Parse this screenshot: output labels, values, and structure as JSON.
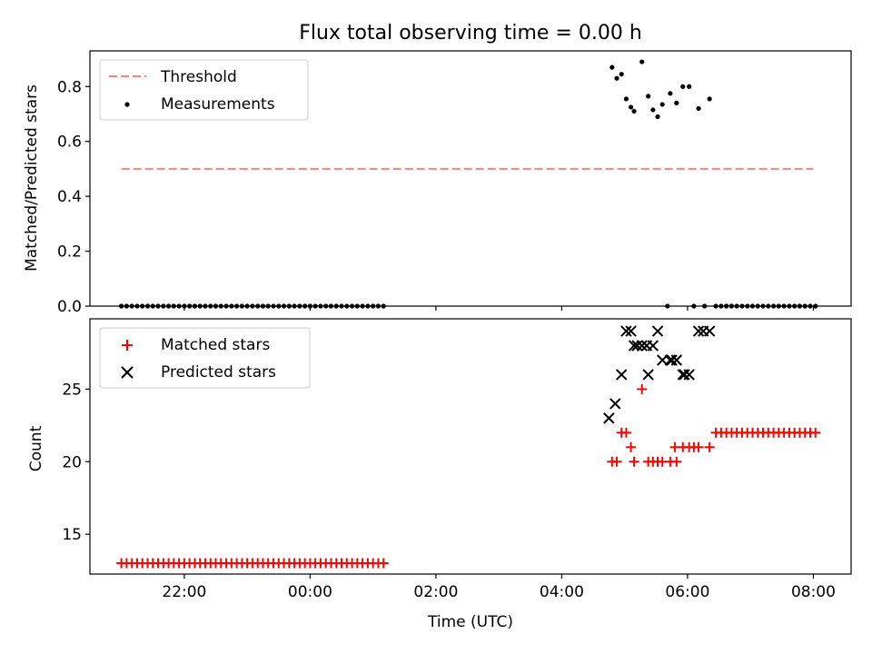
{
  "figure": {
    "title": "Flux total observing time = 0.00 h"
  },
  "colors": {
    "threshold": "#ff8080",
    "measurement": "#000000",
    "matched": "#ff0000",
    "predicted": "#000000",
    "axes": "#000000"
  },
  "chart_data": [
    {
      "type": "scatter",
      "panel": "top",
      "xlabel": "",
      "ylabel": "Matched/Predicted stars",
      "xlim": [
        20.5,
        32.6
      ],
      "ylim": [
        0.0,
        0.93
      ],
      "yticks": [
        0.0,
        0.2,
        0.4,
        0.6,
        0.8
      ],
      "ytick_labels": [
        "0.0",
        "0.2",
        "0.4",
        "0.6",
        "0.8"
      ],
      "xticks": [
        22,
        24,
        26,
        28,
        30,
        32
      ],
      "legend": {
        "placement": "top-left",
        "entries": [
          "Threshold",
          "Measurements"
        ]
      },
      "threshold": {
        "name": "Threshold",
        "x_range": [
          21.0,
          32.0
        ],
        "y": 0.5,
        "style": "dashed"
      },
      "series": [
        {
          "name": "Measurements",
          "marker": "dot",
          "x": [
            21.0,
            21.083,
            21.167,
            21.25,
            21.333,
            21.417,
            21.5,
            21.583,
            21.667,
            21.75,
            21.833,
            21.917,
            22.0,
            22.083,
            22.167,
            22.25,
            22.333,
            22.417,
            22.5,
            22.583,
            22.667,
            22.75,
            22.833,
            22.917,
            23.0,
            23.083,
            23.167,
            23.25,
            23.333,
            23.417,
            23.5,
            23.583,
            23.667,
            23.75,
            23.833,
            23.917,
            24.0,
            24.083,
            24.167,
            24.25,
            24.333,
            24.417,
            24.5,
            24.583,
            24.667,
            24.75,
            24.833,
            24.917,
            25.0,
            25.083,
            25.167,
            28.8,
            28.875,
            28.95,
            29.025,
            29.1,
            29.15,
            29.275,
            29.375,
            29.45,
            29.525,
            29.6,
            29.725,
            29.825,
            29.925,
            30.025,
            30.175,
            30.35,
            29.68,
            30.1,
            30.27,
            30.45,
            30.533,
            30.617,
            30.7,
            30.783,
            30.867,
            30.95,
            31.033,
            31.117,
            31.2,
            31.283,
            31.367,
            31.45,
            31.533,
            31.617,
            31.7,
            31.783,
            31.867,
            31.95,
            32.033
          ],
          "y": [
            0,
            0,
            0,
            0,
            0,
            0,
            0,
            0,
            0,
            0,
            0,
            0,
            0,
            0,
            0,
            0,
            0,
            0,
            0,
            0,
            0,
            0,
            0,
            0,
            0,
            0,
            0,
            0,
            0,
            0,
            0,
            0,
            0,
            0,
            0,
            0,
            0,
            0,
            0,
            0,
            0,
            0,
            0,
            0,
            0,
            0,
            0,
            0,
            0,
            0,
            0,
            0.87,
            0.83,
            0.845,
            0.755,
            0.725,
            0.71,
            0.89,
            0.765,
            0.715,
            0.69,
            0.735,
            0.775,
            0.74,
            0.8,
            0.8,
            0.72,
            0.755,
            0,
            0,
            0,
            0,
            0,
            0,
            0,
            0,
            0,
            0,
            0,
            0,
            0,
            0,
            0,
            0,
            0,
            0,
            0,
            0,
            0,
            0,
            0
          ]
        }
      ]
    },
    {
      "type": "scatter",
      "panel": "bottom",
      "xlabel": "Time (UTC)",
      "ylabel": "Count",
      "xlim": [
        20.5,
        32.6
      ],
      "ylim": [
        12.25,
        29.85
      ],
      "yticks": [
        15,
        20,
        25
      ],
      "ytick_labels": [
        "15",
        "20",
        "25"
      ],
      "xticks": [
        22,
        24,
        26,
        28,
        30,
        32
      ],
      "xtick_labels": [
        "22:00",
        "00:00",
        "02:00",
        "04:00",
        "06:00",
        "08:00"
      ],
      "legend": {
        "placement": "top-left",
        "entries": [
          "Matched stars",
          "Predicted stars"
        ]
      },
      "series": [
        {
          "name": "Matched stars",
          "marker": "plus",
          "x": [
            21.0,
            21.083,
            21.167,
            21.25,
            21.333,
            21.417,
            21.5,
            21.583,
            21.667,
            21.75,
            21.833,
            21.917,
            22.0,
            22.083,
            22.167,
            22.25,
            22.333,
            22.417,
            22.5,
            22.583,
            22.667,
            22.75,
            22.833,
            22.917,
            23.0,
            23.083,
            23.167,
            23.25,
            23.333,
            23.417,
            23.5,
            23.583,
            23.667,
            23.75,
            23.833,
            23.917,
            24.0,
            24.083,
            24.167,
            24.25,
            24.333,
            24.417,
            24.5,
            24.583,
            24.667,
            24.75,
            24.833,
            24.917,
            25.0,
            25.083,
            25.167,
            28.8,
            28.875,
            28.95,
            29.025,
            29.1,
            29.15,
            29.275,
            29.375,
            29.45,
            29.525,
            29.6,
            29.725,
            29.825,
            29.925,
            30.025,
            30.175,
            29.8,
            30.1,
            30.35,
            30.45,
            30.533,
            30.617,
            30.7,
            30.783,
            30.867,
            30.95,
            31.033,
            31.117,
            31.2,
            31.283,
            31.367,
            31.45,
            31.533,
            31.617,
            31.7,
            31.783,
            31.867,
            31.95,
            32.033
          ],
          "y": [
            13,
            13,
            13,
            13,
            13,
            13,
            13,
            13,
            13,
            13,
            13,
            13,
            13,
            13,
            13,
            13,
            13,
            13,
            13,
            13,
            13,
            13,
            13,
            13,
            13,
            13,
            13,
            13,
            13,
            13,
            13,
            13,
            13,
            13,
            13,
            13,
            13,
            13,
            13,
            13,
            13,
            13,
            13,
            13,
            13,
            13,
            13,
            13,
            13,
            13,
            13,
            20,
            20,
            22,
            22,
            21,
            20,
            25,
            20,
            20,
            20,
            20,
            20,
            20,
            21,
            21,
            21,
            21,
            21,
            21,
            22,
            22,
            22,
            22,
            22,
            22,
            22,
            22,
            22,
            22,
            22,
            22,
            22,
            22,
            22,
            22,
            22,
            22,
            22,
            22
          ]
        },
        {
          "name": "Predicted stars",
          "marker": "x",
          "x": [
            28.75,
            28.85,
            28.95,
            29.025,
            29.1,
            29.15,
            29.275,
            29.375,
            29.45,
            29.525,
            29.6,
            29.725,
            29.825,
            29.925,
            30.025,
            30.175,
            30.35,
            29.2,
            29.35,
            29.75,
            29.95,
            30.25
          ],
          "y": [
            23,
            24,
            26,
            29,
            29,
            28,
            28,
            26,
            28,
            29,
            27,
            27,
            27,
            26,
            26,
            29,
            29,
            28,
            28,
            27,
            26,
            29
          ]
        }
      ]
    }
  ]
}
